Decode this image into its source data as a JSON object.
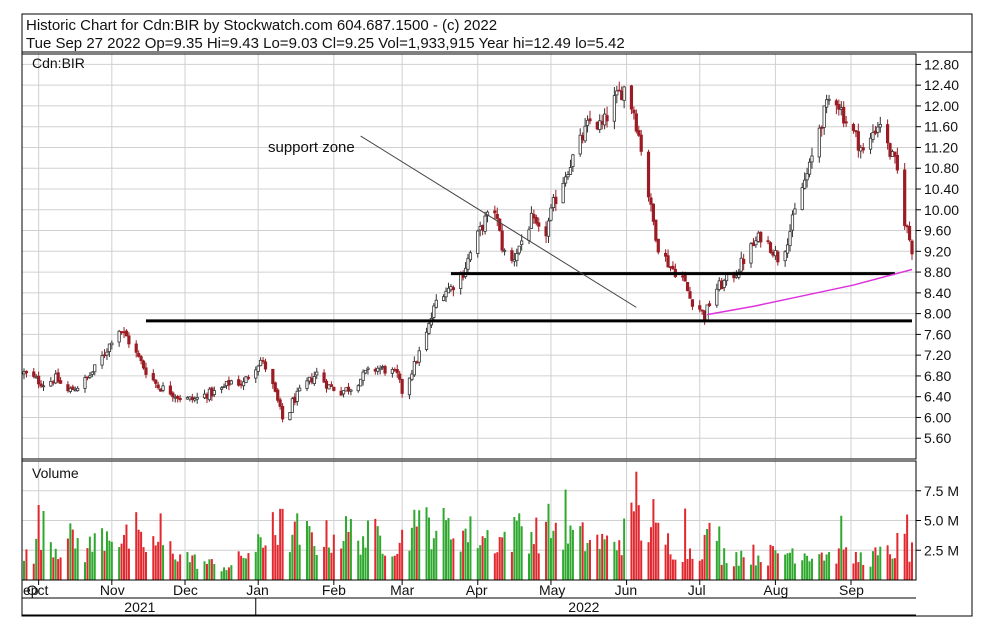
{
  "header": {
    "line1": "Historic Chart for Cdn:BIR by Stockwatch.com 604.687.1500 - (c) 2022",
    "line2": "Tue Sep 27 2022  Op=9.35  Hi=9.43  Lo=9.03  Cl=9.25  Vol=1,933,915  Year hi=12.49  lo=5.42"
  },
  "chart_data": {
    "type": "candlestick",
    "symbol_label": "Cdn:BIR",
    "volume_label": "Volume",
    "annotation": "support zone",
    "price_axis": {
      "ylim": [
        5.2,
        13.0
      ],
      "ticks": [
        "12.80",
        "12.40",
        "12.00",
        "11.60",
        "11.20",
        "10.80",
        "10.40",
        "10.00",
        "9.60",
        "9.20",
        "8.80",
        "8.40",
        "8.00",
        "7.60",
        "7.20",
        "6.80",
        "6.40",
        "6.00",
        "5.60"
      ]
    },
    "volume_axis": {
      "ylim": [
        0,
        10
      ],
      "unit": "M",
      "ticks": [
        "7.5 M",
        "5.0 M",
        "2.5 M"
      ]
    },
    "x_axis": {
      "months": [
        {
          "label": "ep",
          "day": 0
        },
        {
          "label": "Oct",
          "day": 6
        },
        {
          "label": "Nov",
          "day": 36
        },
        {
          "label": "Dec",
          "day": 66
        },
        {
          "label": "Jan",
          "day": 96
        },
        {
          "label": "Feb",
          "day": 127
        },
        {
          "label": "Mar",
          "day": 155
        },
        {
          "label": "Apr",
          "day": 186
        },
        {
          "label": "May",
          "day": 216
        },
        {
          "label": "Jun",
          "day": 247
        },
        {
          "label": "Jul",
          "day": 277
        },
        {
          "label": "Aug",
          "day": 308
        },
        {
          "label": "Sep",
          "day": 339
        }
      ],
      "years": [
        {
          "label": "2021",
          "from": 0,
          "to": 95
        },
        {
          "label": "2022",
          "from": 95,
          "to": 364
        }
      ],
      "day_range": [
        0,
        364
      ]
    },
    "price_path": [
      [
        0,
        6.85
      ],
      [
        4,
        6.75
      ],
      [
        8,
        6.65
      ],
      [
        13,
        6.75
      ],
      [
        18,
        6.5
      ],
      [
        22,
        6.6
      ],
      [
        26,
        6.75
      ],
      [
        30,
        7.0
      ],
      [
        35,
        7.4
      ],
      [
        38,
        7.75
      ],
      [
        42,
        7.55
      ],
      [
        45,
        7.3
      ],
      [
        50,
        6.9
      ],
      [
        55,
        6.6
      ],
      [
        60,
        6.5
      ],
      [
        65,
        6.35
      ],
      [
        70,
        6.35
      ],
      [
        75,
        6.45
      ],
      [
        80,
        6.5
      ],
      [
        85,
        6.7
      ],
      [
        90,
        6.65
      ],
      [
        93,
        6.9
      ],
      [
        97,
        7.1
      ],
      [
        100,
        6.9
      ],
      [
        104,
        6.3
      ],
      [
        107,
        5.8
      ],
      [
        110,
        6.3
      ],
      [
        115,
        6.6
      ],
      [
        120,
        6.85
      ],
      [
        125,
        6.6
      ],
      [
        130,
        6.5
      ],
      [
        135,
        6.6
      ],
      [
        140,
        6.85
      ],
      [
        145,
        6.95
      ],
      [
        150,
        6.9
      ],
      [
        153,
        6.8
      ],
      [
        155,
        6.5
      ],
      [
        160,
        7.0
      ],
      [
        165,
        7.6
      ],
      [
        170,
        8.4
      ],
      [
        175,
        8.5
      ],
      [
        180,
        8.8
      ],
      [
        185,
        9.4
      ],
      [
        189,
        9.8
      ],
      [
        193,
        10.0
      ],
      [
        196,
        9.3
      ],
      [
        199,
        8.9
      ],
      [
        203,
        9.3
      ],
      [
        208,
        9.8
      ],
      [
        213,
        9.4
      ],
      [
        217,
        10.1
      ],
      [
        222,
        10.7
      ],
      [
        227,
        11.2
      ],
      [
        232,
        11.7
      ],
      [
        237,
        11.6
      ],
      [
        242,
        12.1
      ],
      [
        246,
        12.35
      ],
      [
        250,
        11.9
      ],
      [
        253,
        11.2
      ],
      [
        257,
        10.0
      ],
      [
        260,
        9.3
      ],
      [
        265,
        8.9
      ],
      [
        270,
        8.7
      ],
      [
        273,
        8.3
      ],
      [
        277,
        8.1
      ],
      [
        279,
        7.95
      ],
      [
        283,
        8.45
      ],
      [
        287,
        8.6
      ],
      [
        292,
        8.8
      ],
      [
        297,
        9.2
      ],
      [
        302,
        9.5
      ],
      [
        306,
        9.3
      ],
      [
        310,
        9.0
      ],
      [
        314,
        9.6
      ],
      [
        318,
        10.3
      ],
      [
        322,
        10.8
      ],
      [
        326,
        11.6
      ],
      [
        330,
        12.1
      ],
      [
        333,
        12.15
      ],
      [
        337,
        11.7
      ],
      [
        341,
        11.4
      ],
      [
        345,
        11.0
      ],
      [
        348,
        11.5
      ],
      [
        351,
        11.7
      ],
      [
        354,
        11.2
      ],
      [
        357,
        10.9
      ],
      [
        359,
        10.55
      ],
      [
        361,
        9.8
      ],
      [
        364,
        9.25
      ]
    ],
    "ma_line": [
      [
        280,
        7.98
      ],
      [
        300,
        8.15
      ],
      [
        320,
        8.35
      ],
      [
        340,
        8.55
      ],
      [
        364,
        8.85
      ]
    ],
    "support_lines": [
      {
        "y": 7.86,
        "from": 50,
        "to": 364
      },
      {
        "y": 8.77,
        "from": 175,
        "to": 357
      }
    ],
    "trend_line": {
      "from": [
        138,
        11.42
      ],
      "to": [
        251,
        8.12
      ]
    },
    "volume_profile": [
      [
        0,
        1.8
      ],
      [
        5,
        2.5
      ],
      [
        10,
        3.2
      ],
      [
        15,
        2.8
      ],
      [
        20,
        3.5
      ],
      [
        25,
        2.4
      ],
      [
        30,
        3.3
      ],
      [
        35,
        4.4
      ],
      [
        40,
        3.5
      ],
      [
        45,
        3.1
      ],
      [
        50,
        2.9
      ],
      [
        55,
        3.1
      ],
      [
        60,
        2.6
      ],
      [
        65,
        2.2
      ],
      [
        70,
        1.6
      ],
      [
        75,
        1.4
      ],
      [
        80,
        1.2
      ],
      [
        85,
        1.1
      ],
      [
        90,
        2.1
      ],
      [
        95,
        2.6
      ],
      [
        100,
        3.2
      ],
      [
        105,
        4.5
      ],
      [
        110,
        3.6
      ],
      [
        115,
        3.7
      ],
      [
        120,
        3.3
      ],
      [
        125,
        3.6
      ],
      [
        130,
        3.9
      ],
      [
        135,
        4.0
      ],
      [
        140,
        3.5
      ],
      [
        145,
        3.7
      ],
      [
        150,
        3.2
      ],
      [
        155,
        3.4
      ],
      [
        160,
        3.9
      ],
      [
        165,
        4.8
      ],
      [
        170,
        4.4
      ],
      [
        175,
        4.2
      ],
      [
        180,
        4.0
      ],
      [
        185,
        3.8
      ],
      [
        190,
        3.6
      ],
      [
        195,
        3.4
      ],
      [
        200,
        3.8
      ],
      [
        205,
        4.1
      ],
      [
        210,
        3.9
      ],
      [
        215,
        4.5
      ],
      [
        220,
        4.3
      ],
      [
        225,
        3.7
      ],
      [
        230,
        3.4
      ],
      [
        235,
        3.2
      ],
      [
        240,
        3.0
      ],
      [
        245,
        3.6
      ],
      [
        250,
        5.0
      ],
      [
        255,
        4.6
      ],
      [
        260,
        3.7
      ],
      [
        265,
        3.0
      ],
      [
        270,
        2.6
      ],
      [
        275,
        2.5
      ],
      [
        280,
        3.3
      ],
      [
        285,
        2.2
      ],
      [
        290,
        2.0
      ],
      [
        295,
        2.2
      ],
      [
        300,
        2.1
      ],
      [
        305,
        2.1
      ],
      [
        310,
        2.2
      ],
      [
        315,
        2.5
      ],
      [
        320,
        2.3
      ],
      [
        325,
        2.5
      ],
      [
        330,
        2.1
      ],
      [
        335,
        2.0
      ],
      [
        340,
        1.8
      ],
      [
        345,
        1.9
      ],
      [
        350,
        2.0
      ],
      [
        355,
        2.3
      ],
      [
        360,
        3.2
      ],
      [
        364,
        2.2
      ]
    ],
    "volume_spikes": [
      [
        6,
        6.3
      ],
      [
        8,
        5.8
      ],
      [
        46,
        5.7
      ],
      [
        56,
        5.6
      ],
      [
        102,
        5.7
      ],
      [
        112,
        5.6
      ],
      [
        160,
        5.9
      ],
      [
        170,
        6.3
      ],
      [
        203,
        5.6
      ],
      [
        222,
        7.6
      ],
      [
        233,
        6.5
      ],
      [
        251,
        9.1
      ],
      [
        258,
        6.8
      ],
      [
        271,
        6.0
      ],
      [
        281,
        4.8
      ],
      [
        285,
        4.5
      ],
      [
        335,
        5.4
      ],
      [
        362,
        5.5
      ]
    ],
    "style": {
      "up_candle": "#333333",
      "down_candle": "#9b1c24",
      "up_volume": "#2ea82e",
      "down_volume": "#e0282e",
      "ma_color": "#dd33dd",
      "grid_color": "#d0d0d0",
      "frame_color": "#000000",
      "line_color": "#000000"
    }
  }
}
